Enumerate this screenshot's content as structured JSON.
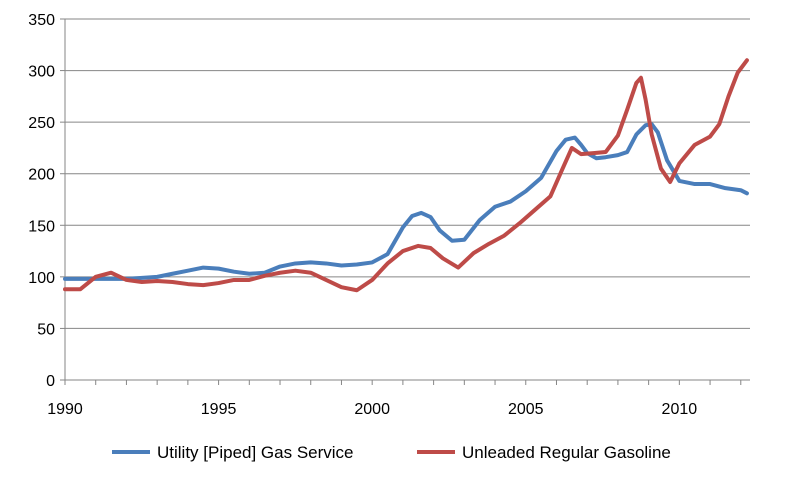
{
  "chart_data": {
    "type": "line",
    "title": "",
    "xlabel": "",
    "ylabel": "",
    "xlim": [
      1990,
      2012.3
    ],
    "ylim": [
      0,
      350
    ],
    "x_ticks": [
      1990,
      1995,
      2000,
      2005,
      2010
    ],
    "y_ticks": [
      0,
      50,
      100,
      150,
      200,
      250,
      300,
      350
    ],
    "x_tick_labels": [
      "1990",
      "1995",
      "2000",
      "2005",
      "2010"
    ],
    "y_tick_labels": [
      "0",
      "50",
      "100",
      "150",
      "200",
      "250",
      "300",
      "350"
    ],
    "grid": "horizontal",
    "legend_position": "bottom",
    "series": [
      {
        "name": "Utility [Piped] Gas Service",
        "color": "#4a7ebb",
        "x": [
          1990,
          1991,
          1992,
          1993,
          1993.5,
          1994,
          1994.5,
          1995,
          1995.5,
          1996,
          1996.5,
          1997,
          1997.5,
          1998,
          1998.5,
          1999,
          1999.5,
          2000,
          2000.5,
          2001,
          2001.3,
          2001.6,
          2001.9,
          2002.2,
          2002.6,
          2003,
          2003.5,
          2004,
          2004.5,
          2005,
          2005.5,
          2006,
          2006.3,
          2006.6,
          2006.8,
          2007,
          2007.3,
          2007.6,
          2008,
          2008.3,
          2008.6,
          2008.9,
          2009.1,
          2009.3,
          2009.6,
          2010,
          2010.5,
          2011,
          2011.5,
          2012,
          2012.2
        ],
        "y": [
          98,
          98,
          98,
          100,
          103,
          106,
          109,
          108,
          105,
          103,
          104,
          110,
          113,
          114,
          113,
          111,
          112,
          114,
          122,
          148,
          159,
          162,
          158,
          145,
          135,
          136,
          155,
          168,
          173,
          183,
          196,
          222,
          233,
          235,
          228,
          220,
          215,
          216,
          218,
          221,
          238,
          247,
          248,
          240,
          213,
          193,
          190,
          190,
          186,
          184,
          181
        ]
      },
      {
        "name": "Unleaded Regular Gasoline",
        "color": "#be4b48",
        "x": [
          1990,
          1990.5,
          1991,
          1991.5,
          1992,
          1992.5,
          1993,
          1993.5,
          1994,
          1994.5,
          1995,
          1995.5,
          1996,
          1996.5,
          1997,
          1997.5,
          1998,
          1998.5,
          1999,
          1999.5,
          2000,
          2000.5,
          2001,
          2001.5,
          2001.9,
          2002.3,
          2002.8,
          2003.3,
          2003.8,
          2004.3,
          2004.8,
          2005.3,
          2005.8,
          2006.2,
          2006.5,
          2006.8,
          2007.2,
          2007.6,
          2008,
          2008.3,
          2008.6,
          2008.75,
          2008.9,
          2009.1,
          2009.4,
          2009.7,
          2010,
          2010.5,
          2011,
          2011.3,
          2011.6,
          2011.9,
          2012.2
        ],
        "y": [
          88,
          88,
          100,
          104,
          97,
          95,
          96,
          95,
          93,
          92,
          94,
          97,
          97,
          101,
          104,
          106,
          104,
          97,
          90,
          87,
          97,
          113,
          125,
          130,
          128,
          118,
          109,
          123,
          132,
          140,
          152,
          165,
          178,
          205,
          225,
          219,
          220,
          221,
          237,
          262,
          288,
          293,
          272,
          238,
          205,
          192,
          210,
          228,
          236,
          248,
          275,
          298,
          310
        ]
      }
    ]
  }
}
